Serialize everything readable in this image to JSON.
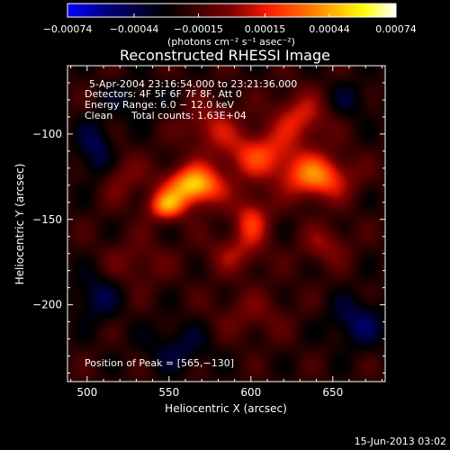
{
  "chart_data": {
    "type": "heatmap",
    "title": "Reconstructed RHESSI Image",
    "xlabel": "Heliocentric X (arcsec)",
    "ylabel": "Heliocentric Y (arcsec)",
    "xlim": [
      488,
      682
    ],
    "ylim": [
      -245,
      -60
    ],
    "xticks": [
      500,
      550,
      600,
      650
    ],
    "xtick_labels": [
      "500",
      "550",
      "600",
      "650"
    ],
    "yticks": [
      -100,
      -150,
      -200
    ],
    "ytick_labels": [
      "−100",
      "−150",
      "−200"
    ],
    "colorbar": {
      "range": [
        -0.00074,
        0.00074
      ],
      "ticks": [
        -0.00074,
        -0.00044,
        -0.00015,
        0.00015,
        0.00044,
        0.00074
      ],
      "tick_labels": [
        "−0.00074",
        "−0.00044",
        "−0.00015",
        "0.00015",
        "0.00044",
        "0.00074"
      ],
      "unit_label": "(photons cm⁻² s⁻¹ asec⁻²)",
      "colors": [
        "#0000ff",
        "#000080",
        "#000000",
        "#800000",
        "#ff2000",
        "#ff8000",
        "#ffff00",
        "#ffffff"
      ]
    },
    "annotations": {
      "time_range": "5‑Apr‑2004 23:16:54.000 to 23:21:36.000",
      "detectors": "Detectors: 4F 5F 6F 7F 8F, Att 0",
      "energy_range": "Energy Range: 6.0 − 12.0 keV",
      "method": "Clean",
      "total_counts": "Total counts: 1.63E+04",
      "peak_position": "Position of Peak = [565,−130]"
    },
    "peak": [
      565,
      -130
    ],
    "sources": [
      {
        "x": 565,
        "y": -130,
        "sx": 12,
        "sy": 8,
        "amp": 1.0
      },
      {
        "x": 548,
        "y": -142,
        "sx": 8,
        "sy": 6,
        "amp": 0.7
      },
      {
        "x": 640,
        "y": -125,
        "sx": 14,
        "sy": 9,
        "amp": 0.75
      },
      {
        "x": 605,
        "y": -112,
        "sx": 16,
        "sy": 10,
        "amp": 0.55
      },
      {
        "x": 630,
        "y": -90,
        "sx": 12,
        "sy": 10,
        "amp": 0.45
      },
      {
        "x": 600,
        "y": -150,
        "sx": 8,
        "sy": 10,
        "amp": 0.5
      },
      {
        "x": 590,
        "y": -170,
        "sx": 12,
        "sy": 8,
        "amp": 0.3
      },
      {
        "x": 645,
        "y": -165,
        "sx": 10,
        "sy": 8,
        "amp": 0.3
      },
      {
        "x": 575,
        "y": -95,
        "sx": 12,
        "sy": 10,
        "amp": 0.35
      },
      {
        "x": 520,
        "y": -125,
        "sx": 10,
        "sy": 10,
        "amp": 0.25
      },
      {
        "x": 530,
        "y": -175,
        "sx": 14,
        "sy": 10,
        "amp": 0.2
      },
      {
        "x": 600,
        "y": -205,
        "sx": 16,
        "sy": 10,
        "amp": 0.2
      },
      {
        "x": 505,
        "y": -110,
        "sx": 8,
        "sy": 12,
        "amp": -0.35
      },
      {
        "x": 505,
        "y": -195,
        "sx": 10,
        "sy": 10,
        "amp": -0.3
      },
      {
        "x": 665,
        "y": -210,
        "sx": 12,
        "sy": 10,
        "amp": -0.35
      },
      {
        "x": 555,
        "y": -225,
        "sx": 14,
        "sy": 10,
        "amp": -0.25
      },
      {
        "x": 660,
        "y": -80,
        "sx": 10,
        "sy": 8,
        "amp": -0.2
      },
      {
        "x": 530,
        "y": -80,
        "sx": 12,
        "sy": 8,
        "amp": -0.2
      }
    ]
  },
  "footer": {
    "date": "15‑Jun‑2013 03:02"
  }
}
